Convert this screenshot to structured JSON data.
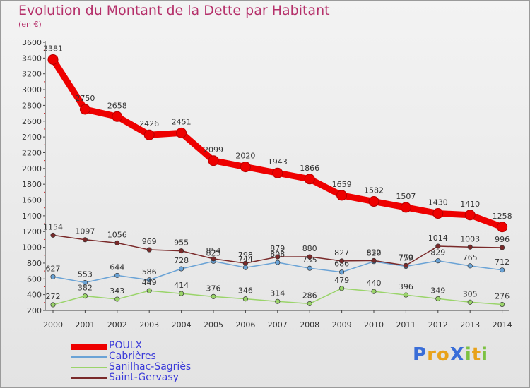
{
  "title": "Evolution du Montant de la Dette par Habitant",
  "subtitle": "(en €)",
  "logo": {
    "text": "ProXiti",
    "letters": [
      "P",
      "r",
      "o",
      "X",
      "i",
      "t",
      "i"
    ],
    "colors": [
      "#3a6ed8",
      "#e8a21a",
      "#e8a21a",
      "#3a6ed8",
      "#7cc242",
      "#e8a21a",
      "#7cc242"
    ]
  },
  "chart_data": {
    "type": "line",
    "title": "Evolution du Montant de la Dette par Habitant",
    "ylabel": "(en €)",
    "xlabel": "",
    "x": [
      "2000",
      "2001",
      "2002",
      "2003",
      "2004",
      "2005",
      "2006",
      "2007",
      "2008",
      "2009",
      "2010",
      "2011",
      "2012",
      "2013",
      "2014"
    ],
    "ylim": [
      200,
      3600
    ],
    "yticks": [
      "200",
      "400",
      "600",
      "800",
      "1000",
      "1200",
      "1400",
      "1600",
      "1800",
      "2000",
      "2200",
      "2400",
      "2600",
      "2800",
      "3000",
      "3200",
      "3400",
      "3600"
    ],
    "grid": false,
    "legend_position": "bottom-left",
    "series": [
      {
        "name": "POULX",
        "color": "#ee0000",
        "emphasis": true,
        "values": [
          3381,
          2750,
          2658,
          2426,
          2451,
          2099,
          2020,
          1943,
          1866,
          1659,
          1582,
          1507,
          1430,
          1410,
          1258
        ]
      },
      {
        "name": "Cabrières",
        "color": "#6aa3d6",
        "emphasis": false,
        "values": [
          627,
          553,
          644,
          586,
          728,
          823,
          744,
          808,
          735,
          686,
          820,
          759,
          829,
          765,
          712
        ]
      },
      {
        "name": "Sanilhac-Sagriès",
        "color": "#9ad46a",
        "emphasis": false,
        "values": [
          272,
          382,
          343,
          449,
          414,
          376,
          346,
          314,
          286,
          479,
          440,
          396,
          349,
          305,
          276
        ]
      },
      {
        "name": "Saint-Gervasy",
        "color": "#7a2a2a",
        "emphasis": false,
        "values": [
          1154,
          1097,
          1056,
          969,
          955,
          854,
          798,
          879,
          880,
          827,
          832,
          770,
          1014,
          1003,
          996
        ]
      }
    ]
  }
}
